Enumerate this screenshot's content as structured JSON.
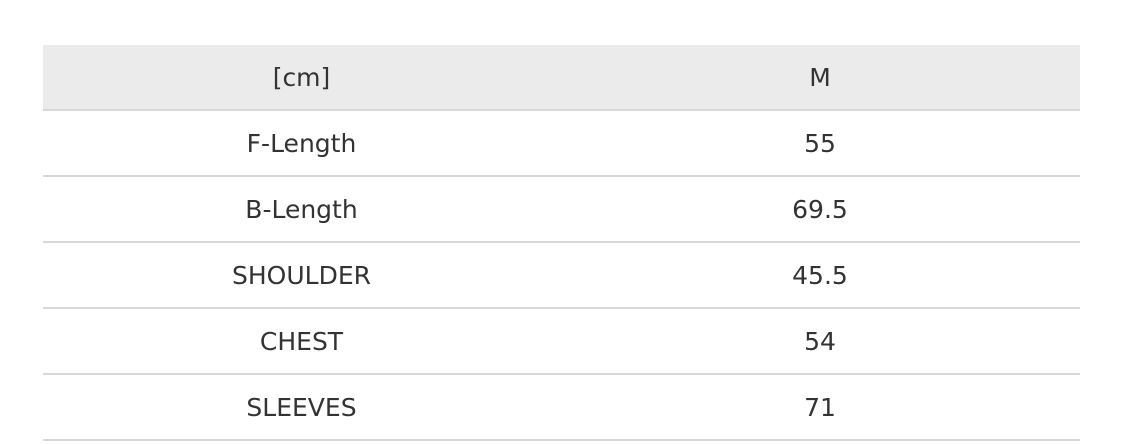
{
  "table": {
    "headers": [
      "[cm]",
      "M"
    ],
    "rows": [
      [
        "F-Length",
        "55"
      ],
      [
        "B-Length",
        "69.5"
      ],
      [
        "SHOULDER",
        "45.5"
      ],
      [
        "CHEST",
        "54"
      ],
      [
        "SLEEVES",
        "71"
      ]
    ]
  }
}
